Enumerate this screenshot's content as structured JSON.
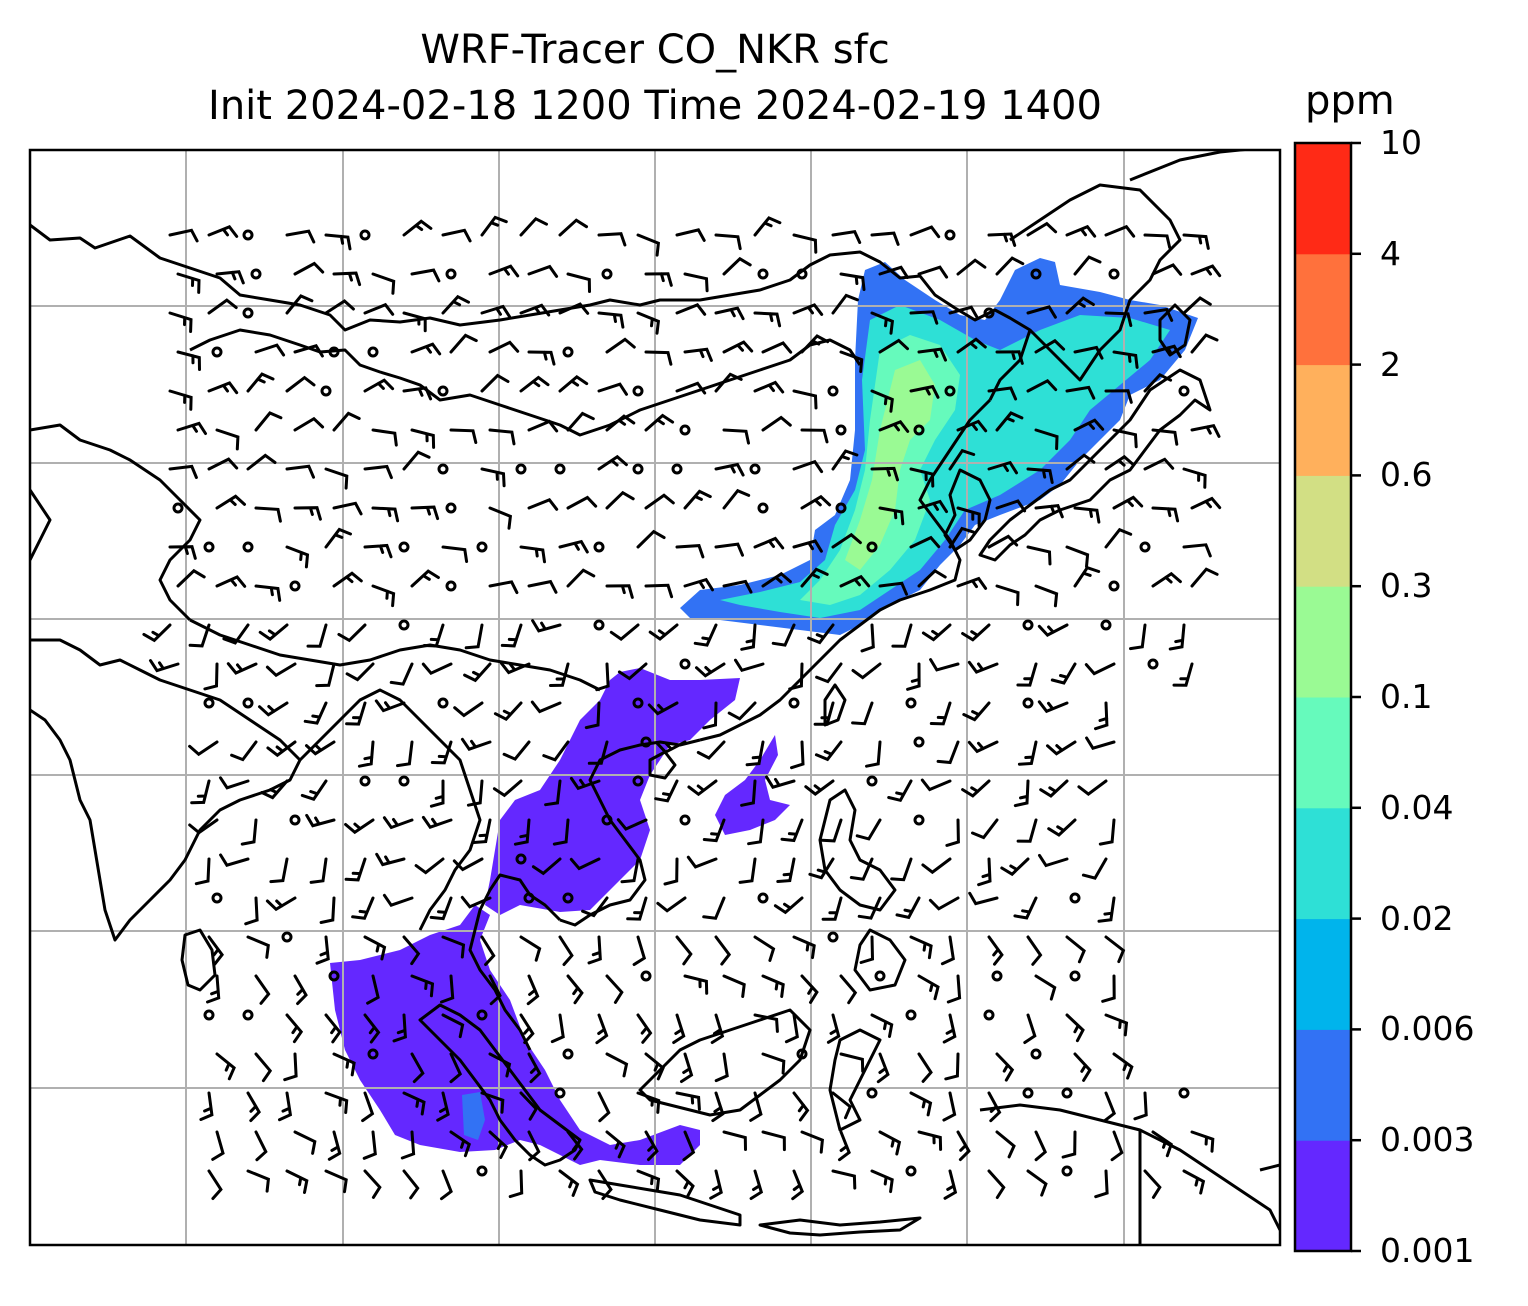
{
  "title": {
    "line1": "WRF-Tracer CO_NKR sfc",
    "line2": "Init 2024-02-18 1200 Time 2024-02-19 1400"
  },
  "colorbar": {
    "unit": "ppm",
    "levels": [
      "0.001",
      "0.003",
      "0.006",
      "0.02",
      "0.04",
      "0.1",
      "0.3",
      "0.6",
      "2",
      "4",
      "10"
    ],
    "colors": [
      "#6428ff",
      "#3272f4",
      "#00b4ec",
      "#2ee0d6",
      "#66fabc",
      "#9afa94",
      "#d2df84",
      "#ffb05c",
      "#ff713c",
      "#ff2a16"
    ]
  },
  "map": {
    "grid": true,
    "features": [
      "coastlines",
      "country-borders",
      "wind-barbs",
      "calm-circles"
    ]
  }
}
